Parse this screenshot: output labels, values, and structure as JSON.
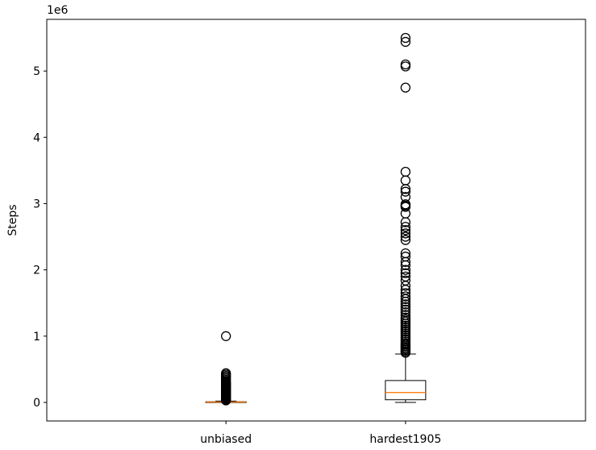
{
  "chart_data": {
    "type": "box",
    "title": "",
    "xlabel": "",
    "ylabel": "Steps",
    "y_scale_label": "1e6",
    "ylim": [
      -0.28,
      5.78
    ],
    "yticks": [
      0,
      1,
      2,
      3,
      4,
      5
    ],
    "ytick_labels": [
      "0",
      "1",
      "2",
      "3",
      "4",
      "5"
    ],
    "categories": [
      "unbiased",
      "hardest1905"
    ],
    "grid": false,
    "colors": {
      "box": "#000000",
      "median": "#ff7f0e",
      "flier": "#000000"
    },
    "boxes": [
      {
        "category": "unbiased",
        "whislo": 0.0,
        "q1": 0.0,
        "median": 0.005,
        "q3": 0.01,
        "whishi": 0.02,
        "fliers": [
          1.0,
          0.44,
          0.42,
          0.4,
          0.38,
          0.36,
          0.34,
          0.32,
          0.3,
          0.29,
          0.28,
          0.27,
          0.26,
          0.25,
          0.24,
          0.23,
          0.22,
          0.21,
          0.2,
          0.19,
          0.18,
          0.17,
          0.16,
          0.15,
          0.14,
          0.13,
          0.12,
          0.11,
          0.1,
          0.09,
          0.08,
          0.07,
          0.06,
          0.05,
          0.04,
          0.03
        ]
      },
      {
        "category": "hardest1905",
        "whislo": 0.0,
        "q1": 0.04,
        "median": 0.15,
        "q3": 0.33,
        "whishi": 0.73,
        "fliers": [
          5.5,
          5.44,
          5.1,
          5.07,
          4.75,
          3.48,
          3.35,
          3.22,
          3.18,
          3.1,
          2.99,
          2.97,
          2.95,
          2.85,
          2.72,
          2.65,
          2.6,
          2.55,
          2.5,
          2.45,
          2.25,
          2.2,
          2.12,
          2.07,
          2.0,
          1.95,
          1.9,
          1.84,
          1.76,
          1.7,
          1.65,
          1.6,
          1.56,
          1.52,
          1.48,
          1.44,
          1.4,
          1.36,
          1.32,
          1.28,
          1.25,
          1.22,
          1.19,
          1.16,
          1.13,
          1.1,
          1.07,
          1.04,
          1.01,
          0.98,
          0.95,
          0.92,
          0.89,
          0.87,
          0.85,
          0.83,
          0.81,
          0.79,
          0.77,
          0.75
        ]
      }
    ]
  }
}
